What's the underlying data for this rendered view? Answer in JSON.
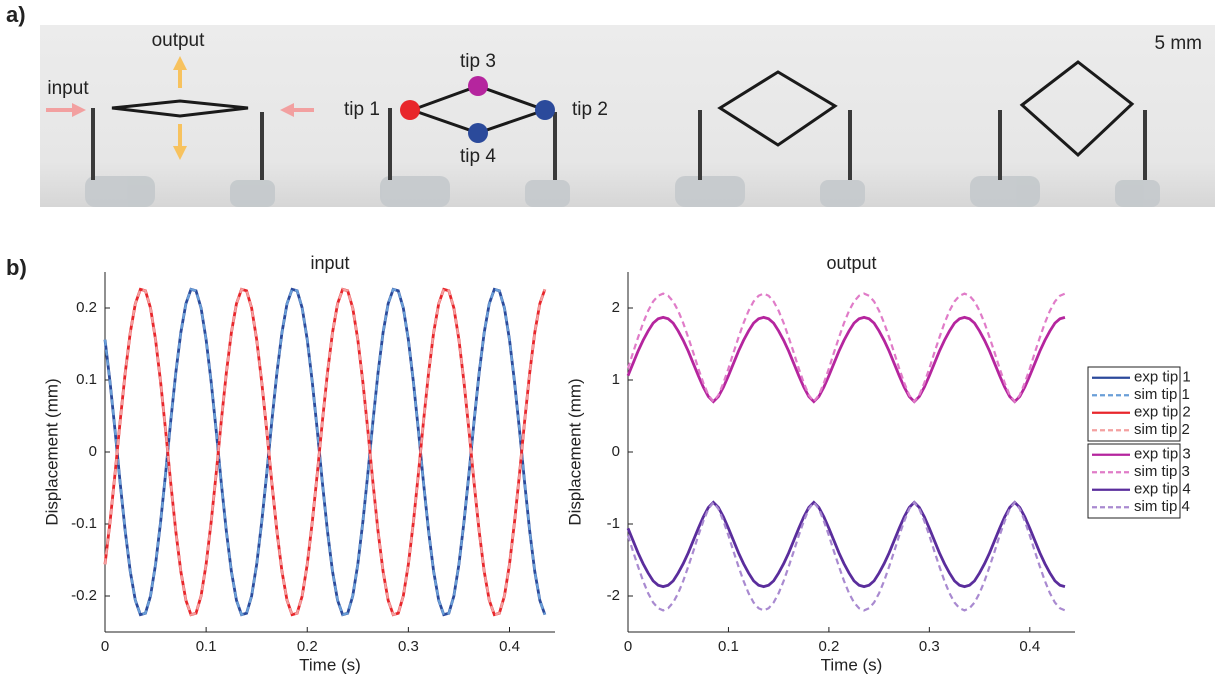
{
  "panel_labels": [
    "a)",
    "b)"
  ],
  "photo_annotations": {
    "output": "output",
    "input": "input",
    "tip3": "tip 3",
    "tip1": "tip 1",
    "tip2": "tip 2",
    "tip4": "tip 4",
    "scale": "5 mm"
  },
  "chart_data": [
    {
      "type": "line",
      "title": "input",
      "xlabel": "Time (s)",
      "ylabel": "Displacement (mm)",
      "xlim": [
        0,
        0.445
      ],
      "xticks": [
        0,
        0.1,
        0.2,
        0.3,
        0.4
      ],
      "ylim": [
        -0.25,
        0.25
      ],
      "yticks": [
        -0.2,
        -0.1,
        0,
        0.1,
        0.2
      ],
      "x": [
        0,
        0.005,
        0.01,
        0.015,
        0.02,
        0.025,
        0.03,
        0.035,
        0.04,
        0.045,
        0.05,
        0.055,
        0.06,
        0.065,
        0.07,
        0.075,
        0.08,
        0.085,
        0.09,
        0.095,
        0.1,
        0.105,
        0.11,
        0.115,
        0.12,
        0.125,
        0.13,
        0.135,
        0.14,
        0.145,
        0.15,
        0.155,
        0.16,
        0.165,
        0.17,
        0.175,
        0.18,
        0.185,
        0.19,
        0.195,
        0.2,
        0.205,
        0.21,
        0.215,
        0.22,
        0.225,
        0.23,
        0.235,
        0.24,
        0.245,
        0.25,
        0.255,
        0.26,
        0.265,
        0.27,
        0.275,
        0.28,
        0.285,
        0.29,
        0.295,
        0.3,
        0.305,
        0.31,
        0.315,
        0.32,
        0.325,
        0.33,
        0.335,
        0.34,
        0.345,
        0.35,
        0.355,
        0.36,
        0.365,
        0.37,
        0.375,
        0.38,
        0.385,
        0.39,
        0.395,
        0.4,
        0.405,
        0.41,
        0.415,
        0.42,
        0.425,
        0.43,
        0.435
      ],
      "series": [
        {
          "name": "exp tip 1",
          "color": "#2b4a9b",
          "dashed": false,
          "values": [
            0.156,
            0.097,
            0.029,
            -0.043,
            -0.11,
            -0.166,
            -0.206,
            -0.226,
            -0.224,
            -0.2,
            -0.156,
            -0.097,
            -0.029,
            0.043,
            0.11,
            0.166,
            0.206,
            0.226,
            0.224,
            0.2,
            0.156,
            0.097,
            0.029,
            -0.043,
            -0.11,
            -0.166,
            -0.206,
            -0.226,
            -0.224,
            -0.2,
            -0.156,
            -0.097,
            -0.029,
            0.043,
            0.11,
            0.166,
            0.206,
            0.226,
            0.224,
            0.2,
            0.156,
            0.097,
            0.029,
            -0.043,
            -0.11,
            -0.166,
            -0.206,
            -0.226,
            -0.224,
            -0.2,
            -0.156,
            -0.097,
            -0.029,
            0.043,
            0.11,
            0.166,
            0.206,
            0.226,
            0.224,
            0.2,
            0.156,
            0.097,
            0.029,
            -0.043,
            -0.11,
            -0.166,
            -0.206,
            -0.226,
            -0.224,
            -0.2,
            -0.156,
            -0.097,
            -0.029,
            0.043,
            0.11,
            0.166,
            0.206,
            0.226,
            0.224,
            0.2,
            0.156,
            0.097,
            0.029,
            -0.043,
            -0.11,
            -0.166,
            -0.206,
            -0.226
          ]
        },
        {
          "name": "sim tip 1",
          "color": "#6a9fd8",
          "dashed": true,
          "values": [
            0.156,
            0.097,
            0.029,
            -0.043,
            -0.11,
            -0.166,
            -0.206,
            -0.226,
            -0.224,
            -0.2,
            -0.156,
            -0.097,
            -0.029,
            0.043,
            0.11,
            0.166,
            0.206,
            0.226,
            0.224,
            0.2,
            0.156,
            0.097,
            0.029,
            -0.043,
            -0.11,
            -0.166,
            -0.206,
            -0.226,
            -0.224,
            -0.2,
            -0.156,
            -0.097,
            -0.029,
            0.043,
            0.11,
            0.166,
            0.206,
            0.226,
            0.224,
            0.2,
            0.156,
            0.097,
            0.029,
            -0.043,
            -0.11,
            -0.166,
            -0.206,
            -0.226,
            -0.224,
            -0.2,
            -0.156,
            -0.097,
            -0.029,
            0.043,
            0.11,
            0.166,
            0.206,
            0.226,
            0.224,
            0.2,
            0.156,
            0.097,
            0.029,
            -0.043,
            -0.11,
            -0.166,
            -0.206,
            -0.226,
            -0.224,
            -0.2,
            -0.156,
            -0.097,
            -0.029,
            0.043,
            0.11,
            0.166,
            0.206,
            0.226,
            0.224,
            0.2,
            0.156,
            0.097,
            0.029,
            -0.043,
            -0.11,
            -0.166,
            -0.206,
            -0.226
          ]
        },
        {
          "name": "exp tip 2",
          "color": "#e8262b",
          "dashed": false,
          "values": [
            -0.156,
            -0.097,
            -0.029,
            0.043,
            0.11,
            0.166,
            0.206,
            0.226,
            0.224,
            0.2,
            0.156,
            0.097,
            0.029,
            -0.043,
            -0.11,
            -0.166,
            -0.206,
            -0.226,
            -0.224,
            -0.2,
            -0.156,
            -0.097,
            -0.029,
            0.043,
            0.11,
            0.166,
            0.206,
            0.226,
            0.224,
            0.2,
            0.156,
            0.097,
            0.029,
            -0.043,
            -0.11,
            -0.166,
            -0.206,
            -0.226,
            -0.224,
            -0.2,
            -0.156,
            -0.097,
            -0.029,
            0.043,
            0.11,
            0.166,
            0.206,
            0.226,
            0.224,
            0.2,
            0.156,
            0.097,
            0.029,
            -0.043,
            -0.11,
            -0.166,
            -0.206,
            -0.226,
            -0.224,
            -0.2,
            -0.156,
            -0.097,
            -0.029,
            0.043,
            0.11,
            0.166,
            0.206,
            0.226,
            0.224,
            0.2,
            0.156,
            0.097,
            0.029,
            -0.043,
            -0.11,
            -0.166,
            -0.206,
            -0.226,
            -0.224,
            -0.2,
            -0.156,
            -0.097,
            -0.029,
            0.043,
            0.11,
            0.166,
            0.206,
            0.226
          ]
        },
        {
          "name": "sim tip 2",
          "color": "#f4a0a0",
          "dashed": true,
          "values": [
            -0.156,
            -0.097,
            -0.029,
            0.043,
            0.11,
            0.166,
            0.206,
            0.226,
            0.224,
            0.2,
            0.156,
            0.097,
            0.029,
            -0.043,
            -0.11,
            -0.166,
            -0.206,
            -0.226,
            -0.224,
            -0.2,
            -0.156,
            -0.097,
            -0.029,
            0.043,
            0.11,
            0.166,
            0.206,
            0.226,
            0.224,
            0.2,
            0.156,
            0.097,
            0.029,
            -0.043,
            -0.11,
            -0.166,
            -0.206,
            -0.226,
            -0.224,
            -0.2,
            -0.156,
            -0.097,
            -0.029,
            0.043,
            0.11,
            0.166,
            0.206,
            0.226,
            0.224,
            0.2,
            0.156,
            0.097,
            0.029,
            -0.043,
            -0.11,
            -0.166,
            -0.206,
            -0.226,
            -0.224,
            -0.2,
            -0.156,
            -0.097,
            -0.029,
            0.043,
            0.11,
            0.166,
            0.206,
            0.226,
            0.224,
            0.2,
            0.156,
            0.097,
            0.029,
            -0.043,
            -0.11,
            -0.166,
            -0.206,
            -0.226,
            -0.224,
            -0.2,
            -0.156,
            -0.097,
            -0.029,
            0.043,
            0.11,
            0.166,
            0.206,
            0.226
          ]
        }
      ]
    },
    {
      "type": "line",
      "title": "output",
      "xlabel": "Time (s)",
      "ylabel": "Displacement (mm)",
      "xlim": [
        0,
        0.445
      ],
      "xticks": [
        0,
        0.1,
        0.2,
        0.3,
        0.4
      ],
      "ylim": [
        -2.5,
        2.5
      ],
      "yticks": [
        -2,
        -1,
        0,
        1,
        2
      ],
      "legend": "right",
      "x": [
        0,
        0.005,
        0.01,
        0.015,
        0.02,
        0.025,
        0.03,
        0.035,
        0.04,
        0.045,
        0.05,
        0.055,
        0.06,
        0.065,
        0.07,
        0.075,
        0.08,
        0.085,
        0.09,
        0.095,
        0.1,
        0.105,
        0.11,
        0.115,
        0.12,
        0.125,
        0.13,
        0.135,
        0.14,
        0.145,
        0.15,
        0.155,
        0.16,
        0.165,
        0.17,
        0.175,
        0.18,
        0.185,
        0.19,
        0.195,
        0.2,
        0.205,
        0.21,
        0.215,
        0.22,
        0.225,
        0.23,
        0.235,
        0.24,
        0.245,
        0.25,
        0.255,
        0.26,
        0.265,
        0.27,
        0.275,
        0.28,
        0.285,
        0.29,
        0.295,
        0.3,
        0.305,
        0.31,
        0.315,
        0.32,
        0.325,
        0.33,
        0.335,
        0.34,
        0.345,
        0.35,
        0.355,
        0.36,
        0.365,
        0.37,
        0.375,
        0.38,
        0.385,
        0.39,
        0.395,
        0.4,
        0.405,
        0.41,
        0.415,
        0.42,
        0.425,
        0.43,
        0.435
      ],
      "series": [
        {
          "name": "exp tip 3",
          "color": "#b5259e",
          "dashed": false,
          "values": [
            1.06,
            1.23,
            1.4,
            1.55,
            1.68,
            1.79,
            1.85,
            1.87,
            1.85,
            1.79,
            1.68,
            1.55,
            1.4,
            1.23,
            1.06,
            0.9,
            0.77,
            0.7,
            0.77,
            0.9,
            1.06,
            1.23,
            1.4,
            1.55,
            1.68,
            1.79,
            1.85,
            1.87,
            1.85,
            1.79,
            1.68,
            1.55,
            1.4,
            1.23,
            1.06,
            0.9,
            0.77,
            0.7,
            0.77,
            0.9,
            1.06,
            1.23,
            1.4,
            1.55,
            1.68,
            1.79,
            1.85,
            1.87,
            1.85,
            1.79,
            1.68,
            1.55,
            1.4,
            1.23,
            1.06,
            0.9,
            0.77,
            0.7,
            0.77,
            0.9,
            1.06,
            1.23,
            1.4,
            1.55,
            1.68,
            1.79,
            1.85,
            1.87,
            1.85,
            1.79,
            1.68,
            1.55,
            1.4,
            1.23,
            1.06,
            0.9,
            0.77,
            0.7,
            0.77,
            0.9,
            1.06,
            1.23,
            1.4,
            1.55,
            1.68,
            1.79,
            1.85,
            1.87
          ]
        },
        {
          "name": "sim tip 3",
          "color": "#e07cc8",
          "dashed": true,
          "values": [
            1.16,
            1.38,
            1.59,
            1.79,
            1.96,
            2.09,
            2.17,
            2.2,
            2.17,
            2.09,
            1.96,
            1.79,
            1.59,
            1.38,
            1.16,
            0.96,
            0.79,
            0.7,
            0.79,
            0.96,
            1.16,
            1.38,
            1.59,
            1.79,
            1.96,
            2.09,
            2.17,
            2.2,
            2.17,
            2.09,
            1.96,
            1.79,
            1.59,
            1.38,
            1.16,
            0.96,
            0.79,
            0.7,
            0.79,
            0.96,
            1.16,
            1.38,
            1.59,
            1.79,
            1.96,
            2.09,
            2.17,
            2.2,
            2.17,
            2.09,
            1.96,
            1.79,
            1.59,
            1.38,
            1.16,
            0.96,
            0.79,
            0.7,
            0.79,
            0.96,
            1.16,
            1.38,
            1.59,
            1.79,
            1.96,
            2.09,
            2.17,
            2.2,
            2.17,
            2.09,
            1.96,
            1.79,
            1.59,
            1.38,
            1.16,
            0.96,
            0.79,
            0.7,
            0.79,
            0.96,
            1.16,
            1.38,
            1.59,
            1.79,
            1.96,
            2.09,
            2.17,
            2.2
          ]
        },
        {
          "name": "exp tip 4",
          "color": "#5a2d9c",
          "dashed": false,
          "values": [
            -1.06,
            -1.23,
            -1.4,
            -1.55,
            -1.68,
            -1.79,
            -1.85,
            -1.87,
            -1.85,
            -1.79,
            -1.68,
            -1.55,
            -1.4,
            -1.23,
            -1.06,
            -0.9,
            -0.77,
            -0.7,
            -0.77,
            -0.9,
            -1.06,
            -1.23,
            -1.4,
            -1.55,
            -1.68,
            -1.79,
            -1.85,
            -1.87,
            -1.85,
            -1.79,
            -1.68,
            -1.55,
            -1.4,
            -1.23,
            -1.06,
            -0.9,
            -0.77,
            -0.7,
            -0.77,
            -0.9,
            -1.06,
            -1.23,
            -1.4,
            -1.55,
            -1.68,
            -1.79,
            -1.85,
            -1.87,
            -1.85,
            -1.79,
            -1.68,
            -1.55,
            -1.4,
            -1.23,
            -1.06,
            -0.9,
            -0.77,
            -0.7,
            -0.77,
            -0.9,
            -1.06,
            -1.23,
            -1.4,
            -1.55,
            -1.68,
            -1.79,
            -1.85,
            -1.87,
            -1.85,
            -1.79,
            -1.68,
            -1.55,
            -1.4,
            -1.23,
            -1.06,
            -0.9,
            -0.77,
            -0.7,
            -0.77,
            -0.9,
            -1.06,
            -1.23,
            -1.4,
            -1.55,
            -1.68,
            -1.79,
            -1.85,
            -1.87
          ]
        },
        {
          "name": "sim tip 4",
          "color": "#a98ad0",
          "dashed": true,
          "values": [
            -1.16,
            -1.38,
            -1.59,
            -1.79,
            -1.96,
            -2.09,
            -2.17,
            -2.2,
            -2.17,
            -2.09,
            -1.96,
            -1.79,
            -1.59,
            -1.38,
            -1.16,
            -0.96,
            -0.79,
            -0.7,
            -0.79,
            -0.96,
            -1.16,
            -1.38,
            -1.59,
            -1.79,
            -1.96,
            -2.09,
            -2.17,
            -2.2,
            -2.17,
            -2.09,
            -1.96,
            -1.79,
            -1.59,
            -1.38,
            -1.16,
            -0.96,
            -0.79,
            -0.7,
            -0.79,
            -0.96,
            -1.16,
            -1.38,
            -1.59,
            -1.79,
            -1.96,
            -2.09,
            -2.17,
            -2.2,
            -2.17,
            -2.09,
            -1.96,
            -1.79,
            -1.59,
            -1.38,
            -1.16,
            -0.96,
            -0.79,
            -0.7,
            -0.79,
            -0.96,
            -1.16,
            -1.38,
            -1.59,
            -1.79,
            -1.96,
            -2.09,
            -2.17,
            -2.2,
            -2.17,
            -2.09,
            -1.96,
            -1.79,
            -1.59,
            -1.38,
            -1.16,
            -0.96,
            -0.79,
            -0.7,
            -0.79,
            -0.96,
            -1.16,
            -1.38,
            -1.59,
            -1.79,
            -1.96,
            -2.09,
            -2.17,
            -2.2
          ]
        }
      ]
    }
  ]
}
